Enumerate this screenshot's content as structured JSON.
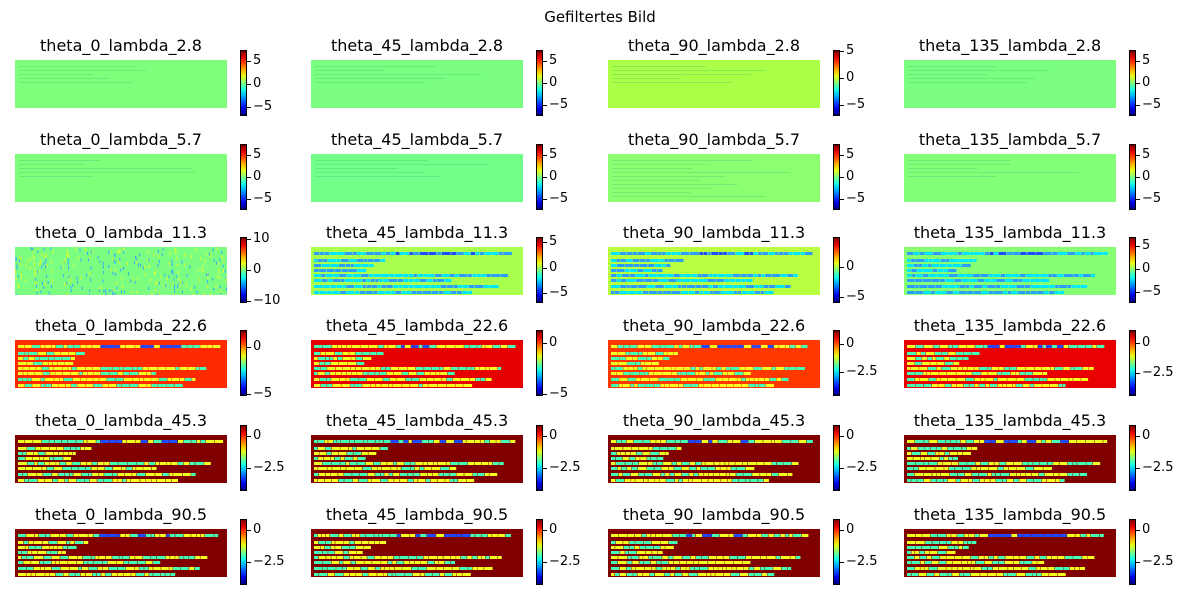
{
  "suptitle": "Gefiltertes Bild",
  "chart_data": {
    "type": "heatmap",
    "title": "Gefiltertes Bild",
    "colormap": "jet",
    "grid": false,
    "rows": [
      [
        {
          "title": "theta_0_lambda_2.8",
          "fill": "#80ff7c",
          "texture": "faint",
          "cbar": {
            "min": -7,
            "max": 7.5,
            "ticks": [
              5,
              0,
              -5
            ]
          }
        },
        {
          "title": "theta_45_lambda_2.8",
          "fill": "#7cff80",
          "texture": "faint",
          "cbar": {
            "min": -7.5,
            "max": 7.5,
            "ticks": [
              5,
              0,
              -5
            ]
          }
        },
        {
          "title": "theta_90_lambda_2.8",
          "fill": "#acff47",
          "texture": "faint",
          "cbar": {
            "min": -7,
            "max": 5.2,
            "ticks": [
              5,
              0,
              -5
            ]
          }
        },
        {
          "title": "theta_135_lambda_2.8",
          "fill": "#7cff80",
          "texture": "faint",
          "cbar": {
            "min": -7.5,
            "max": 7.5,
            "ticks": [
              5,
              0,
              -5
            ]
          }
        }
      ],
      [
        {
          "title": "theta_0_lambda_5.7",
          "fill": "#80ff7a",
          "texture": "faint",
          "cbar": {
            "min": -7.5,
            "max": 7.5,
            "ticks": [
              5,
              0,
              -5
            ]
          }
        },
        {
          "title": "theta_45_lambda_5.7",
          "fill": "#73ff8a",
          "texture": "faint",
          "cbar": {
            "min": -7.5,
            "max": 7.5,
            "ticks": [
              5,
              0,
              -5
            ]
          }
        },
        {
          "title": "theta_90_lambda_5.7",
          "fill": "#8cff70",
          "texture": "lines",
          "cbar": {
            "min": -7.5,
            "max": 7.5,
            "ticks": [
              5,
              0,
              -5
            ]
          }
        },
        {
          "title": "theta_135_lambda_5.7",
          "fill": "#84ff78",
          "texture": "faint",
          "cbar": {
            "min": -7.5,
            "max": 7.5,
            "ticks": [
              5,
              0,
              -5
            ]
          }
        }
      ],
      [
        {
          "title": "theta_0_lambda_11.3",
          "fill": "#7cff80",
          "texture": "dense",
          "cbar": {
            "min": -10.5,
            "max": 10.5,
            "ticks": [
              10,
              0,
              -10
            ]
          }
        },
        {
          "title": "theta_45_lambda_11.3",
          "fill": "#a9ff4e",
          "texture": "text",
          "cbar": {
            "min": -7,
            "max": 6,
            "ticks": [
              5,
              0,
              -5
            ]
          }
        },
        {
          "title": "theta_90_lambda_11.3",
          "fill": "#b8ff40",
          "texture": "text",
          "cbar": {
            "min": -6,
            "max": 5,
            "ticks": [
              0,
              -5
            ]
          }
        },
        {
          "title": "theta_135_lambda_11.3",
          "fill": "#86ff72",
          "texture": "text",
          "cbar": {
            "min": -7.5,
            "max": 7,
            "ticks": [
              5,
              0,
              -5
            ]
          }
        }
      ],
      [
        {
          "title": "theta_0_lambda_22.6",
          "fill": "#ff2a00",
          "texture": "text",
          "cbar": {
            "min": -5.2,
            "max": 1.8,
            "ticks": [
              0,
              -5
            ]
          }
        },
        {
          "title": "theta_45_lambda_22.6",
          "fill": "#e60000",
          "texture": "text",
          "cbar": {
            "min": -5.2,
            "max": 1.3,
            "ticks": [
              0,
              -5
            ]
          }
        },
        {
          "title": "theta_90_lambda_22.6",
          "fill": "#ff3800",
          "texture": "text",
          "cbar": {
            "min": -4.6,
            "max": 1.2,
            "ticks": [
              0,
              -2.5
            ]
          }
        },
        {
          "title": "theta_135_lambda_22.6",
          "fill": "#e90000",
          "texture": "text",
          "cbar": {
            "min": -4.4,
            "max": 1.1,
            "ticks": [
              0,
              -2.5
            ]
          }
        }
      ],
      [
        {
          "title": "theta_0_lambda_45.3",
          "fill": "#800000",
          "texture": "text",
          "cbar": {
            "min": -4.3,
            "max": 0.9,
            "ticks": [
              0,
              -2.5
            ]
          }
        },
        {
          "title": "theta_45_lambda_45.3",
          "fill": "#800000",
          "texture": "text",
          "cbar": {
            "min": -4.3,
            "max": 0.9,
            "ticks": [
              0,
              -2.5
            ]
          }
        },
        {
          "title": "theta_90_lambda_45.3",
          "fill": "#800000",
          "texture": "text",
          "cbar": {
            "min": -4.3,
            "max": 0.9,
            "ticks": [
              0,
              -2.5
            ]
          }
        },
        {
          "title": "theta_135_lambda_45.3",
          "fill": "#800000",
          "texture": "text",
          "cbar": {
            "min": -4.3,
            "max": 0.9,
            "ticks": [
              0,
              -2.5
            ]
          }
        }
      ],
      [
        {
          "title": "theta_0_lambda_90.5",
          "fill": "#800000",
          "texture": "text",
          "cbar": {
            "min": -4.3,
            "max": 0.9,
            "ticks": [
              0,
              -2.5
            ]
          }
        },
        {
          "title": "theta_45_lambda_90.5",
          "fill": "#800000",
          "texture": "text",
          "cbar": {
            "min": -4.3,
            "max": 0.9,
            "ticks": [
              0,
              -2.5
            ]
          }
        },
        {
          "title": "theta_90_lambda_90.5",
          "fill": "#800000",
          "texture": "text",
          "cbar": {
            "min": -4.3,
            "max": 0.9,
            "ticks": [
              0,
              -2.5
            ]
          }
        },
        {
          "title": "theta_135_lambda_90.5",
          "fill": "#800000",
          "texture": "text",
          "cbar": {
            "min": -4.3,
            "max": 0.9,
            "ticks": [
              0,
              -2.5
            ]
          }
        }
      ]
    ]
  }
}
